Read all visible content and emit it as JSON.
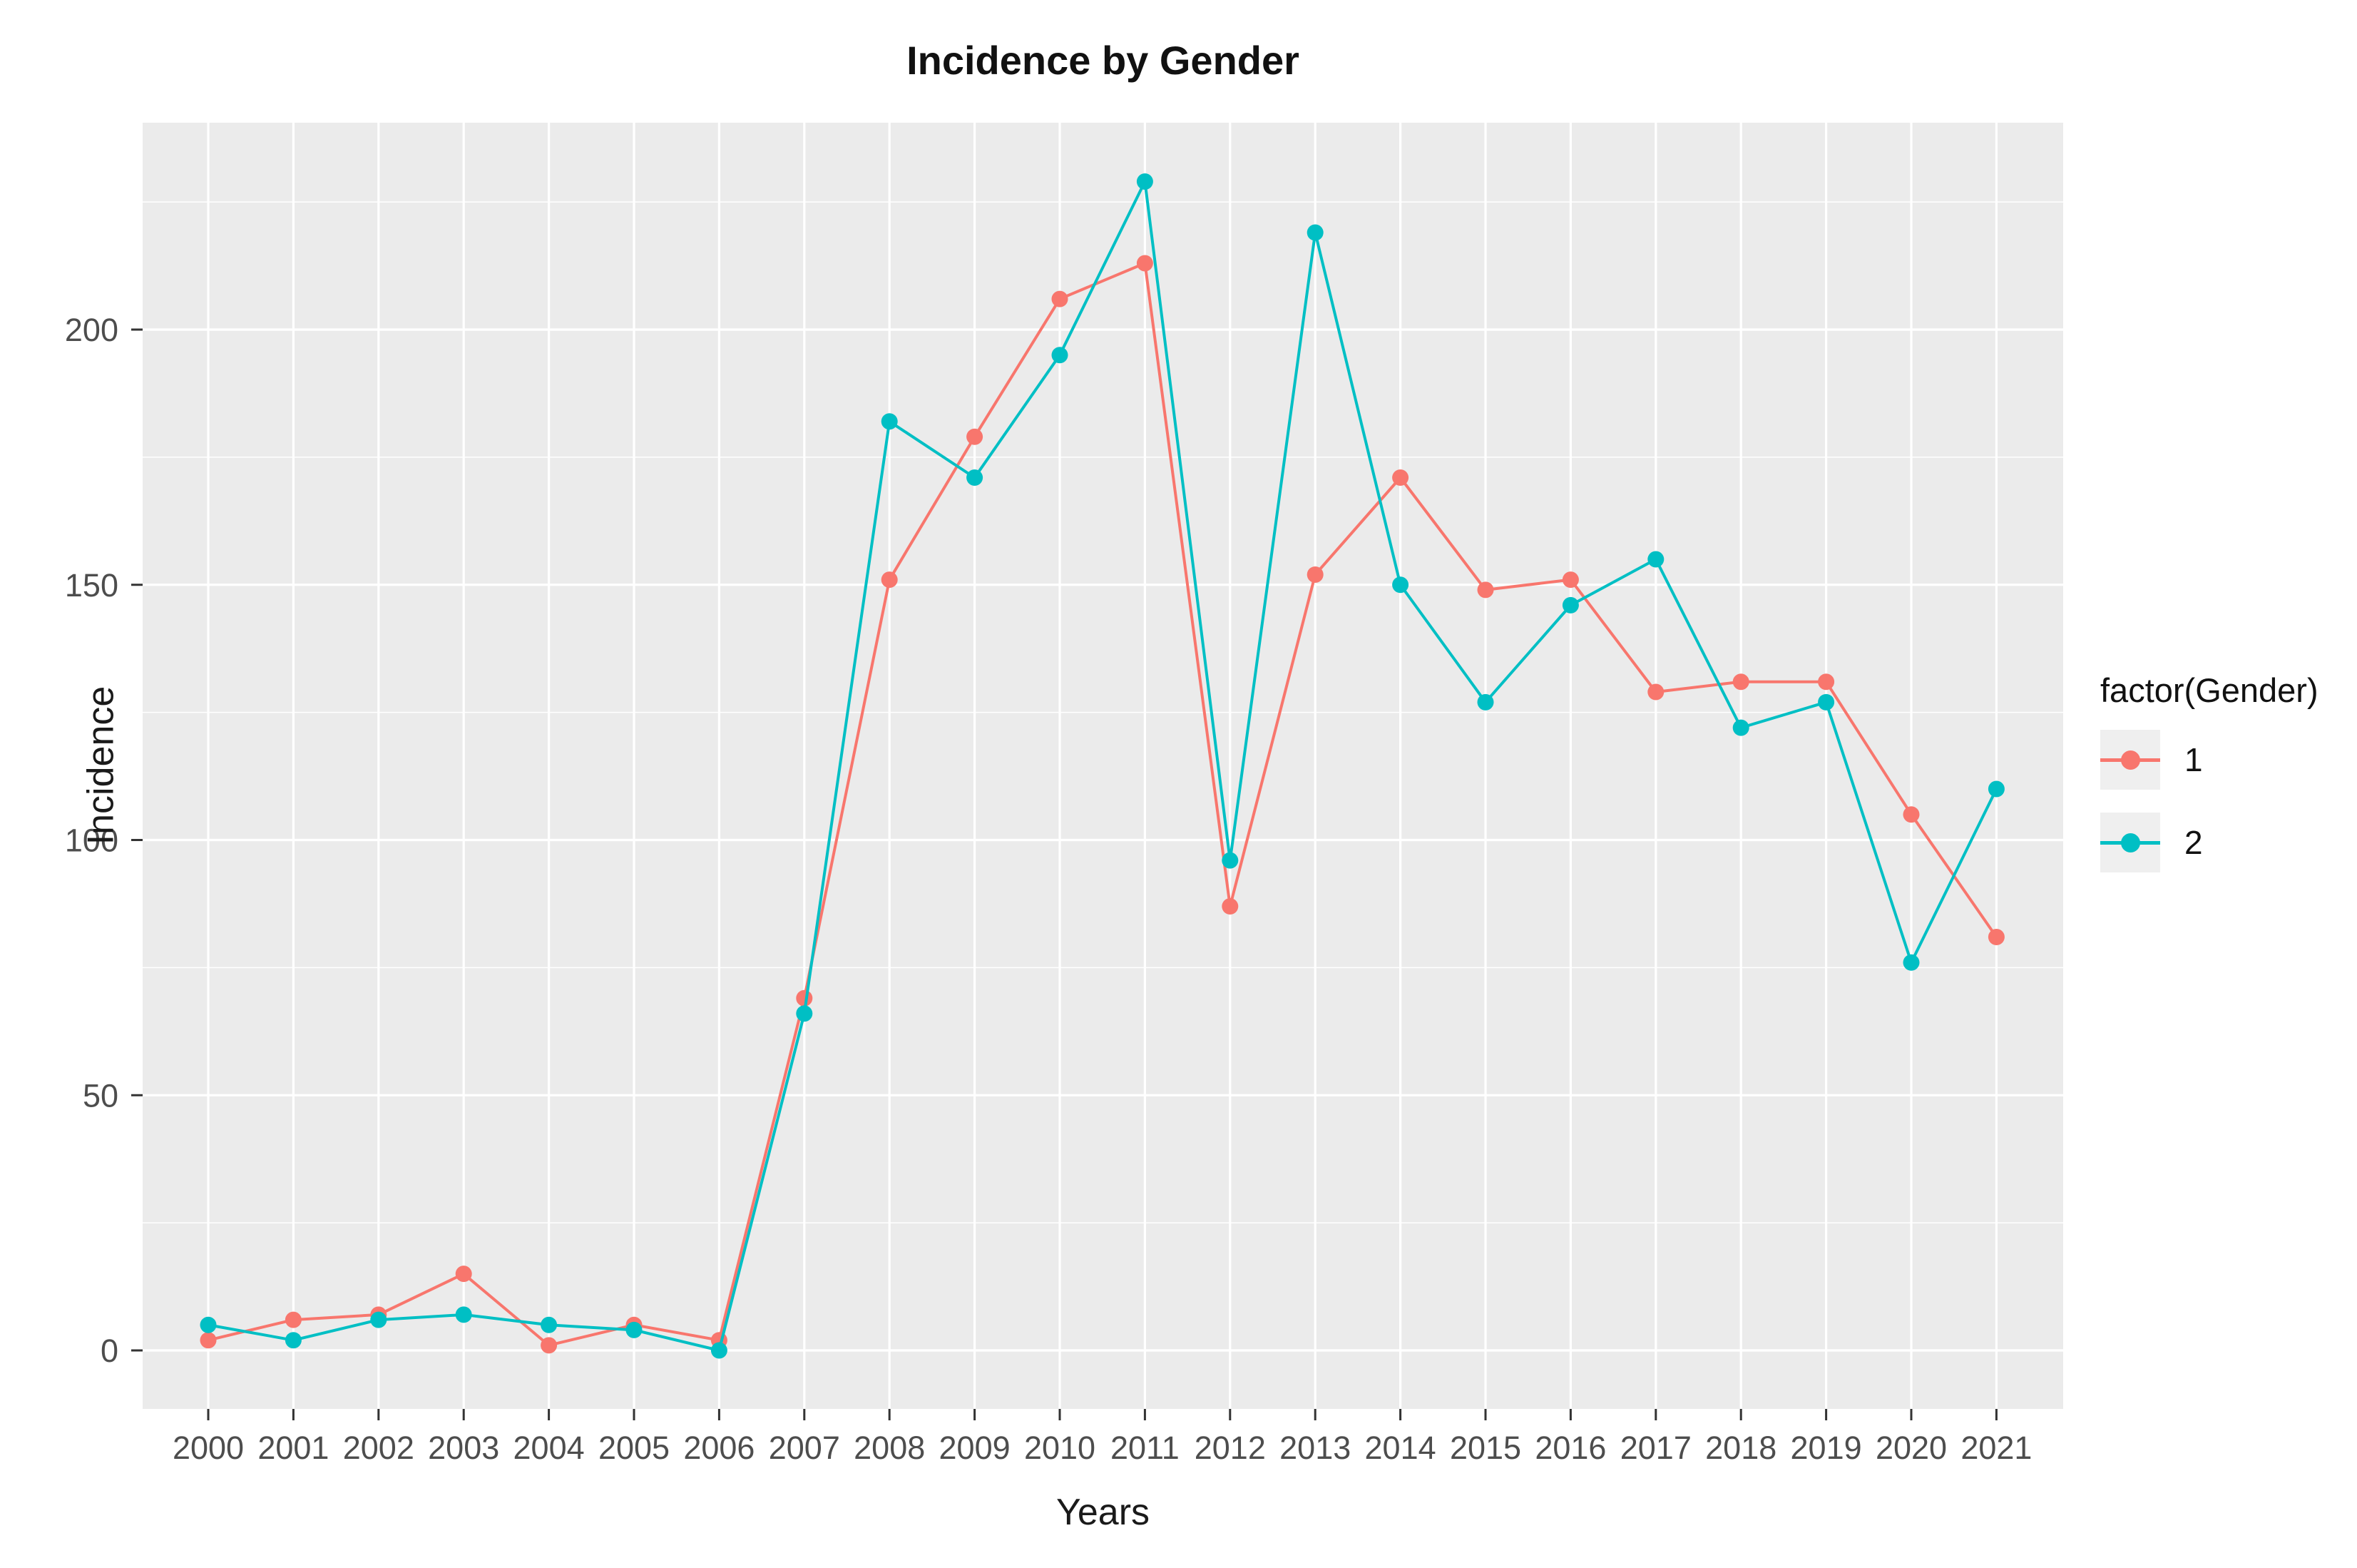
{
  "chart_data": {
    "type": "line",
    "title": "Incidence by Gender",
    "xlabel": "Years",
    "ylabel": "Incidence",
    "x": [
      2000,
      2001,
      2002,
      2003,
      2004,
      2005,
      2006,
      2007,
      2008,
      2009,
      2010,
      2011,
      2012,
      2013,
      2014,
      2015,
      2016,
      2017,
      2018,
      2019,
      2020,
      2021
    ],
    "series": [
      {
        "name": "1",
        "color": "#F8766D",
        "values": [
          2,
          6,
          7,
          15,
          1,
          5,
          2,
          69,
          151,
          179,
          206,
          213,
          87,
          152,
          171,
          149,
          151,
          129,
          131,
          131,
          105,
          81
        ]
      },
      {
        "name": "2",
        "color": "#00BFC4",
        "values": [
          5,
          2,
          6,
          7,
          5,
          4,
          0,
          66,
          182,
          171,
          195,
          229,
          96,
          219,
          150,
          127,
          146,
          155,
          122,
          127,
          76,
          110
        ]
      }
    ],
    "legend": {
      "title": "factor(Gender)",
      "position": "right",
      "entries": [
        "1",
        "2"
      ]
    },
    "y_ticks": [
      0,
      50,
      100,
      150,
      200
    ],
    "y_minor_ticks": [
      25,
      75,
      125,
      175,
      225
    ],
    "ylim": [
      -11.5,
      240.5
    ],
    "grid": {
      "panel_bg": "#EBEBEB",
      "major_color": "#FFFFFF",
      "minor_color": "#FFFFFF",
      "tick_color": "#333333",
      "tick_label_color": "#4D4D4D"
    }
  }
}
